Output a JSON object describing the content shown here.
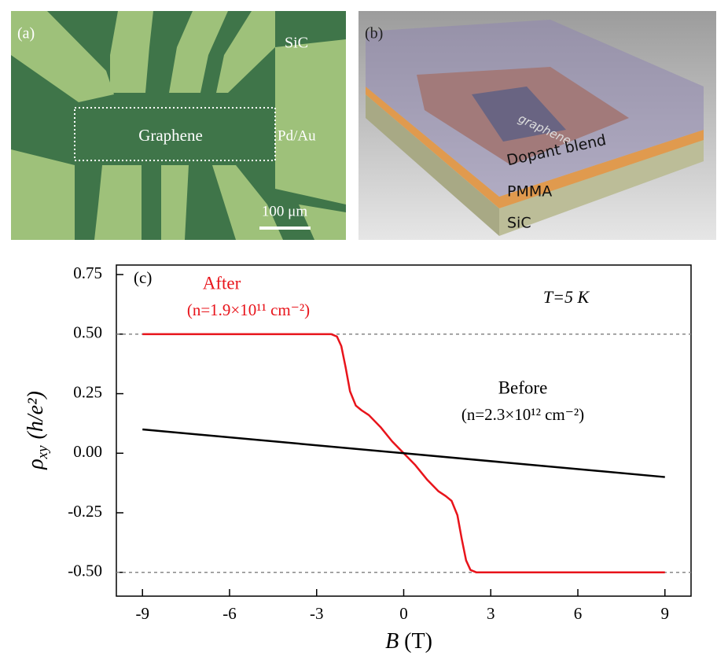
{
  "panels": {
    "a": {
      "label": "(a)",
      "substrate": "SiC",
      "channel": "Graphene",
      "contacts": "Pd/Au",
      "scale_bar": "100 μm"
    },
    "b": {
      "label": "(b)",
      "channel": "graphene",
      "top_layer": "Dopant blend",
      "middle_layer": "PMMA",
      "substrate": "SiC"
    }
  },
  "chart_data": {
    "type": "line",
    "panel_label": "(c)",
    "x_label": {
      "symbol": "B",
      "unit": "(T)"
    },
    "y_label": {
      "symbol": "ρ",
      "subscript": "xy",
      "unit": "(h/e²)"
    },
    "xlim": [
      -9.9,
      9.9
    ],
    "ylim": [
      -0.6,
      0.79
    ],
    "xticks": [
      -9,
      -6,
      -3,
      0,
      3,
      6,
      9
    ],
    "yticks": [
      {
        "value": 0.75,
        "label": "0.75"
      },
      {
        "value": 0.5,
        "label": "0.50"
      },
      {
        "value": 0.25,
        "label": "0.25"
      },
      {
        "value": 0,
        "label": "0.00"
      },
      {
        "value": -0.25,
        "label": "-0.25"
      },
      {
        "value": -0.5,
        "label": "-0.50"
      }
    ],
    "reference_lines": [
      0.5,
      -0.5
    ],
    "series": [
      {
        "name": "After",
        "density": "(n=1.9×10¹¹ cm⁻²)",
        "color": "#e8141b",
        "x": [
          -9,
          -2.5,
          -2.3,
          -2.15,
          -2.0,
          -1.85,
          -1.65,
          -1.45,
          -1.2,
          -0.8,
          -0.4,
          0,
          0.4,
          0.8,
          1.2,
          1.45,
          1.65,
          1.85,
          2.0,
          2.15,
          2.3,
          2.5,
          9
        ],
        "values": [
          0.5,
          0.5,
          0.49,
          0.45,
          0.36,
          0.26,
          0.2,
          0.18,
          0.16,
          0.11,
          0.05,
          0,
          -0.05,
          -0.11,
          -0.16,
          -0.18,
          -0.2,
          -0.26,
          -0.36,
          -0.45,
          -0.49,
          -0.5,
          -0.5
        ]
      },
      {
        "name": "Before",
        "density": "(n=2.3×10¹² cm⁻²)",
        "color": "#000000",
        "x": [
          -9,
          9
        ],
        "values": [
          0.1,
          -0.1
        ]
      }
    ],
    "annotation": "T=5 K"
  }
}
